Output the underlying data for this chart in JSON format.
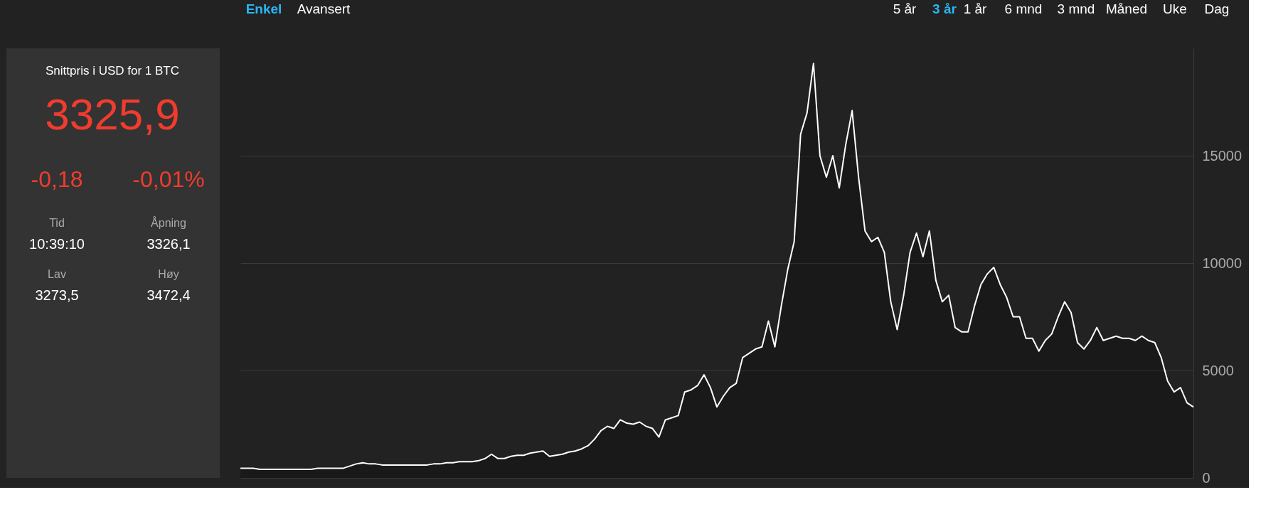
{
  "chart_data": [
    {
      "type": "other",
      "title": "Snittpris i USD for 1 BTC",
      "annotations": [
        "3325,9",
        "-0,18",
        "-0,01%",
        "Tid",
        "10:39:10",
        "Åpning",
        "3326,1",
        "Lav",
        "3273,5",
        "Høy",
        "3472,4"
      ]
    },
    {
      "type": "area",
      "annotations": [
        "Enkel",
        "Avansert",
        "5 år",
        "3 år",
        "1 år",
        "6 mnd",
        "3 mnd",
        "Måned",
        "Uke",
        "Dag"
      ],
      "categories": [
        null,
        null,
        null,
        null,
        null,
        null,
        null,
        null,
        null,
        null,
        null,
        null,
        null,
        null,
        null,
        null,
        null,
        null,
        null,
        null,
        null,
        null,
        null,
        null,
        null,
        null,
        null,
        null,
        null,
        null,
        null,
        null,
        null,
        null,
        null,
        null,
        null,
        null,
        null,
        null,
        null,
        null,
        null,
        null,
        null,
        null,
        null,
        null,
        null,
        null,
        null,
        null,
        null,
        null,
        null,
        null,
        null,
        null,
        null,
        null,
        null,
        null,
        null,
        null,
        null,
        null,
        null,
        null,
        null,
        null,
        null,
        null,
        null,
        null,
        null,
        null,
        null,
        null,
        null,
        null,
        null,
        null,
        null,
        null,
        null,
        null,
        null,
        null,
        null,
        null,
        null,
        null,
        null,
        null,
        null,
        null,
        null,
        null,
        null,
        null,
        null,
        null,
        null,
        null,
        null,
        null,
        null,
        null,
        null,
        null,
        null,
        null,
        null,
        null,
        null,
        null,
        null,
        null,
        null,
        null,
        null,
        null,
        null,
        null,
        null,
        null,
        null,
        null,
        null,
        null,
        null,
        null,
        null,
        null,
        null,
        null,
        null,
        null,
        null,
        null,
        null,
        null,
        null,
        null,
        null,
        null,
        null,
        null,
        null
      ],
      "series": [
        {
          "color": "#ffffff",
          "values": [
            450,
            450,
            450,
            400,
            400,
            400,
            400,
            400,
            400,
            400,
            400,
            400,
            450,
            450,
            450,
            450,
            450,
            550,
            650,
            700,
            650,
            650,
            600,
            600,
            600,
            600,
            600,
            600,
            600,
            600,
            650,
            650,
            700,
            700,
            750,
            750,
            750,
            800,
            900,
            1100,
            900,
            900,
            1000,
            1050,
            1050,
            1150,
            1200,
            1250,
            1000,
            1050,
            1100,
            1200,
            1250,
            1350,
            1500,
            1800,
            2200,
            2400,
            2300,
            2700,
            2550,
            2500,
            2600,
            2400,
            2300,
            1900,
            2700,
            2800,
            2900,
            4000,
            4100,
            4300,
            4800,
            4200,
            3300,
            3800,
            4200,
            4400,
            5600,
            5800,
            6000,
            6100,
            7300,
            6100,
            8000,
            9700,
            11000,
            16000,
            17000,
            19300,
            15000,
            14000,
            15000,
            13500,
            15500,
            17100,
            14000,
            11500,
            11000,
            11200,
            10500,
            8200,
            6900,
            8500,
            10500,
            11400,
            10300,
            11500,
            9200,
            8200,
            8500,
            7000,
            6800,
            6800,
            8000,
            9000,
            9500,
            9800,
            9000,
            8400,
            7500,
            7500,
            6500,
            6500,
            5900,
            6400,
            6700,
            7500,
            8200,
            7700,
            6300,
            6000,
            6400,
            7000,
            6400,
            6500,
            6600,
            6500,
            6500,
            6400,
            6600,
            6400,
            6300,
            5600,
            4500,
            4000,
            4200,
            3500,
            3300
          ]
        }
      ],
      "ylim": [
        0,
        20000
      ],
      "yticks": [
        0,
        5000,
        10000,
        15000
      ],
      "grid": "y"
    }
  ]
}
